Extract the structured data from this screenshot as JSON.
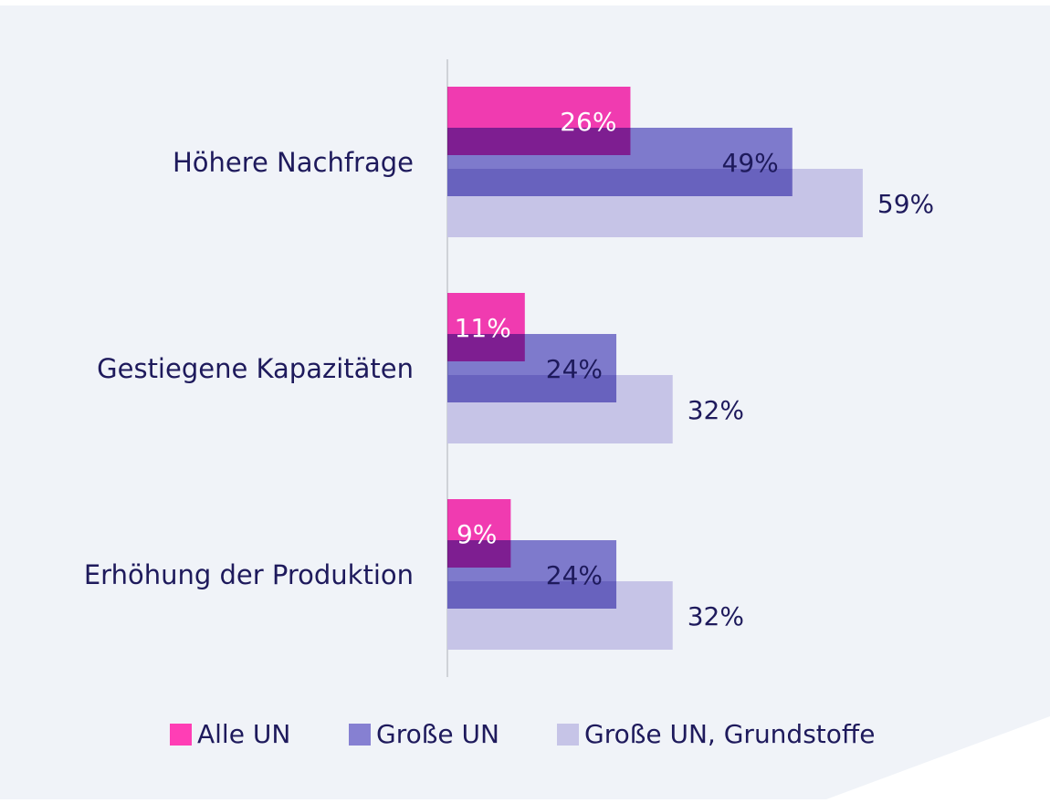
{
  "chart_data": {
    "type": "bar",
    "orientation": "horizontal",
    "categories": [
      "Höhere Nachfrage",
      "Gestiegene Kapazitäten",
      "Erhöhung der Produktion"
    ],
    "series": [
      {
        "name": "Alle UN",
        "color": "#ff3eb5",
        "values": [
          26,
          11,
          9
        ],
        "value_labels": [
          "26%",
          "11%",
          "9%"
        ]
      },
      {
        "name": "Große UN",
        "color": "#8680d2",
        "values": [
          49,
          24,
          24
        ],
        "value_labels": [
          "49%",
          "24%",
          "24%"
        ]
      },
      {
        "name": "Große UN, Grundstoffe",
        "color": "#c6c4e7",
        "values": [
          59,
          32,
          32
        ],
        "value_labels": [
          "59%",
          "32%",
          "32%"
        ]
      }
    ],
    "legend": "bottom"
  }
}
